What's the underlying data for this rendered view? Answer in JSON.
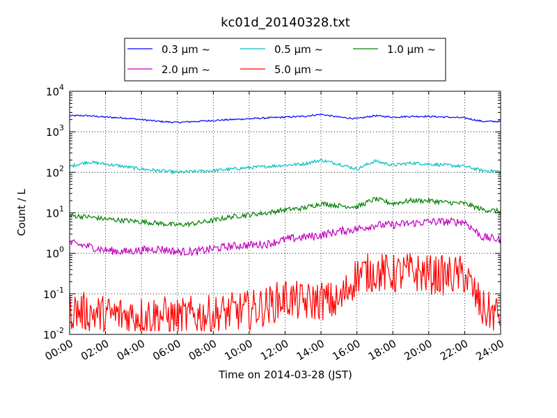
{
  "chart_data": {
    "type": "line",
    "title": "kc01d_20140328.txt",
    "xlabel": "Time on 2014-03-28 (JST)",
    "ylabel": "Count / L",
    "x_ticks": [
      "00:00",
      "02:00",
      "04:00",
      "06:00",
      "08:00",
      "10:00",
      "12:00",
      "14:00",
      "16:00",
      "18:00",
      "20:00",
      "22:00",
      "24:00"
    ],
    "y_ticks": [
      {
        "base": "10",
        "exp": "-2"
      },
      {
        "base": "10",
        "exp": "-1"
      },
      {
        "base": "10",
        "exp": "0"
      },
      {
        "base": "10",
        "exp": "1"
      },
      {
        "base": "10",
        "exp": "2"
      },
      {
        "base": "10",
        "exp": "3"
      },
      {
        "base": "10",
        "exp": "4"
      }
    ],
    "x_range_hours": [
      0,
      24
    ],
    "y_range": [
      0.01,
      10000
    ],
    "y_scale": "log",
    "grid": true,
    "legend_position": "top",
    "series": [
      {
        "name": "0.3 μm ~",
        "color": "#0000ff",
        "x_hours": [
          0,
          1,
          2,
          3,
          4,
          5,
          6,
          7,
          8,
          9,
          10,
          11,
          12,
          13,
          14,
          15,
          16,
          17,
          18,
          19,
          20,
          21,
          22,
          23,
          24
        ],
        "values": [
          2500,
          2500,
          2300,
          2200,
          2000,
          1800,
          1700,
          1800,
          1900,
          2000,
          2100,
          2200,
          2300,
          2400,
          2700,
          2300,
          2100,
          2500,
          2300,
          2400,
          2400,
          2300,
          2200,
          1800,
          1800
        ]
      },
      {
        "name": "0.5 μm ~",
        "color": "#00bfbf",
        "x_hours": [
          0,
          1,
          2,
          3,
          4,
          5,
          6,
          7,
          8,
          9,
          10,
          11,
          12,
          13,
          14,
          15,
          16,
          17,
          18,
          19,
          20,
          21,
          22,
          23,
          24
        ],
        "values": [
          140,
          180,
          160,
          140,
          120,
          110,
          100,
          105,
          110,
          120,
          130,
          140,
          150,
          160,
          200,
          160,
          120,
          190,
          150,
          170,
          160,
          150,
          140,
          110,
          105
        ]
      },
      {
        "name": "1.0 μm ~",
        "color": "#008000",
        "x_hours": [
          0,
          1,
          2,
          3,
          4,
          5,
          6,
          7,
          8,
          9,
          10,
          11,
          12,
          13,
          14,
          15,
          16,
          17,
          18,
          19,
          20,
          21,
          22,
          23,
          24
        ],
        "values": [
          8.5,
          8,
          7,
          6.5,
          6,
          5.5,
          5,
          5.5,
          6.5,
          8,
          9,
          10,
          12,
          13,
          17,
          15,
          14,
          22,
          17,
          20,
          20,
          18,
          17,
          12,
          11
        ]
      },
      {
        "name": "2.0 μm ~",
        "color": "#bf00bf",
        "x_hours": [
          0,
          1,
          2,
          3,
          4,
          5,
          6,
          7,
          8,
          9,
          10,
          11,
          12,
          13,
          14,
          15,
          16,
          17,
          18,
          19,
          20,
          21,
          22,
          23,
          24
        ],
        "values": [
          1.8,
          1.5,
          1.2,
          1.1,
          1.2,
          1.3,
          1.1,
          1.1,
          1.3,
          1.5,
          1.6,
          1.7,
          2.2,
          2.5,
          2.8,
          3.5,
          4,
          5,
          5,
          5.5,
          6,
          6,
          6,
          2.5,
          2.2
        ]
      },
      {
        "name": "5.0 μm ~",
        "color": "#ff0000",
        "x_hours": [
          0,
          1,
          2,
          3,
          4,
          5,
          6,
          7,
          8,
          9,
          10,
          11,
          12,
          13,
          14,
          15,
          16,
          17,
          18,
          19,
          20,
          21,
          22,
          23,
          24
        ],
        "values": [
          0.04,
          0.035,
          0.03,
          0.03,
          0.03,
          0.03,
          0.025,
          0.03,
          0.03,
          0.035,
          0.04,
          0.05,
          0.08,
          0.06,
          0.07,
          0.06,
          0.3,
          0.35,
          0.3,
          0.35,
          0.3,
          0.28,
          0.3,
          0.04,
          0.03
        ]
      }
    ]
  }
}
